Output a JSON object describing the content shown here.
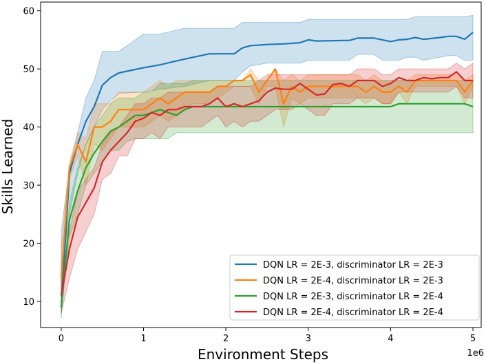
{
  "chart_data": {
    "type": "line",
    "title": "",
    "xlabel": "Environment Steps",
    "ylabel": "Skills Learned",
    "x_offset_label": "1e6",
    "xlim": [
      -0.25,
      5.1
    ],
    "ylim": [
      5.5,
      61.5
    ],
    "xticks": [
      0,
      1,
      2,
      3,
      4,
      5
    ],
    "yticks": [
      10,
      20,
      30,
      40,
      50,
      60
    ],
    "grid": false,
    "legend_position": "lower-right",
    "series": [
      {
        "name": "DQN LR = 2E-3, discriminator LR = 2E-3",
        "color": "#1f77b4",
        "x": [
          0,
          0.1,
          0.2,
          0.3,
          0.4,
          0.5,
          0.6,
          0.7,
          1.0,
          1.2,
          1.5,
          1.8,
          2.1,
          2.2,
          2.3,
          2.5,
          2.7,
          2.9,
          3.0,
          3.1,
          3.5,
          3.6,
          3.8,
          3.9,
          4.0,
          4.1,
          4.2,
          4.3,
          4.4,
          4.6,
          4.7,
          4.8,
          4.9,
          5.0
        ],
        "y": [
          9,
          32,
          37,
          41,
          43.5,
          47.2,
          48.5,
          49.3,
          50.2,
          50.7,
          51.7,
          52.6,
          52.6,
          53.6,
          54.0,
          54.2,
          54.3,
          54.5,
          55.0,
          54.8,
          54.9,
          55.3,
          55.3,
          55.0,
          54.7,
          55.0,
          55.1,
          55.4,
          55.1,
          55.4,
          55.6,
          55.6,
          55.1,
          56.3
        ],
        "upper": [
          22,
          33,
          39,
          45,
          48,
          53,
          53,
          53,
          56,
          56,
          57,
          57,
          57,
          58,
          58,
          58,
          58,
          58,
          58.5,
          58.5,
          58.5,
          58.5,
          58.5,
          58.5,
          58.5,
          58.5,
          58.5,
          59,
          59,
          59,
          59,
          59,
          59,
          59.2
        ],
        "lower": [
          7,
          25,
          32,
          37,
          40,
          43,
          44.5,
          45.8,
          46,
          46.5,
          47,
          48,
          48,
          49.5,
          50.5,
          51,
          51,
          51,
          51.5,
          51.5,
          51.5,
          52.5,
          52.5,
          51.5,
          51.5,
          51.5,
          52,
          52,
          51.5,
          52,
          52.3,
          52.3,
          51.5,
          51.5
        ]
      },
      {
        "name": "DQN LR = 2E-4, discriminator LR = 2E-3",
        "color": "#ff7f0e",
        "x": [
          0,
          0.1,
          0.2,
          0.3,
          0.4,
          0.5,
          0.6,
          0.7,
          0.8,
          1.0,
          1.1,
          1.2,
          1.3,
          1.4,
          1.5,
          1.6,
          1.8,
          1.9,
          2.0,
          2.1,
          2.2,
          2.3,
          2.4,
          2.5,
          2.6,
          2.7,
          2.8,
          2.9,
          3.0,
          3.1,
          3.3,
          3.4,
          3.5,
          3.6,
          3.7,
          3.8,
          3.9,
          4.0,
          4.1,
          4.2,
          4.3,
          4.4,
          4.5,
          4.6,
          4.7,
          4.8,
          4.9,
          5.0
        ],
        "y": [
          14,
          33,
          37,
          34,
          40,
          40,
          41,
          43,
          43,
          43,
          44,
          45,
          44,
          45,
          46,
          46,
          46,
          47,
          47,
          48,
          48,
          49,
          46,
          48,
          50,
          44,
          47,
          46,
          47,
          47,
          47,
          47,
          47,
          47,
          46,
          47,
          46,
          46,
          47,
          46,
          48,
          48,
          48,
          48,
          48,
          48,
          46,
          48
        ],
        "upper": [
          19,
          34,
          39,
          38,
          44,
          44,
          44,
          46,
          46,
          46,
          47,
          48,
          47,
          48,
          48,
          48,
          48,
          48,
          48,
          48,
          48,
          50,
          48,
          48,
          50,
          48,
          49,
          48,
          49,
          49,
          49,
          49,
          49,
          49,
          48,
          49,
          48,
          48,
          48,
          48,
          49,
          49,
          49,
          49,
          49,
          49,
          48,
          49
        ],
        "lower": [
          12,
          31,
          35,
          30,
          37,
          36,
          38,
          40,
          40,
          40,
          41,
          42,
          41,
          42,
          43,
          44,
          44,
          45,
          46,
          47,
          47,
          47,
          44,
          47,
          47,
          40,
          45,
          44,
          45,
          45,
          45,
          45,
          45,
          45,
          44,
          45,
          44,
          44,
          46,
          44,
          47,
          47,
          47,
          47,
          47,
          47,
          44,
          47
        ]
      },
      {
        "name": "DQN LR = 2E-3, discriminator LR = 2E-4",
        "color": "#2ca02c",
        "x": [
          0,
          0.1,
          0.2,
          0.3,
          0.4,
          0.5,
          0.6,
          0.7,
          0.8,
          0.9,
          1.0,
          1.1,
          1.2,
          1.3,
          1.4,
          1.5,
          1.6,
          1.7,
          1.8,
          2.0,
          2.5,
          3.0,
          3.5,
          4.0,
          4.1,
          4.5,
          4.9,
          5.0
        ],
        "y": [
          9,
          24,
          29,
          33,
          35.5,
          37.5,
          39.3,
          40,
          41,
          42,
          42,
          42.5,
          43,
          42.5,
          42,
          43,
          43.5,
          43.5,
          43.5,
          43.5,
          43.5,
          43.5,
          43.5,
          43.5,
          44,
          44,
          44,
          43.5
        ],
        "upper": [
          12,
          27,
          33,
          37,
          40,
          42,
          44,
          45,
          45,
          45,
          46,
          46,
          47.5,
          47.5,
          47.5,
          47.5,
          48,
          48,
          48,
          48,
          48,
          48,
          48,
          48,
          48,
          48,
          48,
          48
        ],
        "lower": [
          8,
          21,
          25,
          30,
          32,
          34,
          36,
          36,
          37.5,
          38,
          38,
          38,
          38,
          38,
          39,
          39,
          39,
          39,
          39,
          39,
          39,
          39,
          39,
          39,
          39,
          39,
          39,
          39
        ]
      },
      {
        "name": "DQN LR = 2E-4, discriminator LR = 2E-4",
        "color": "#d62728",
        "x": [
          0,
          0.1,
          0.2,
          0.3,
          0.4,
          0.5,
          0.6,
          0.7,
          0.8,
          0.9,
          1.0,
          1.1,
          1.2,
          1.3,
          1.4,
          1.5,
          1.6,
          1.7,
          1.8,
          1.9,
          2.0,
          2.1,
          2.2,
          2.3,
          2.4,
          2.5,
          2.6,
          2.7,
          2.8,
          2.9,
          3.0,
          3.1,
          3.2,
          3.3,
          3.4,
          3.5,
          3.6,
          3.7,
          3.8,
          3.9,
          4.0,
          4.1,
          4.2,
          4.3,
          4.4,
          4.5,
          4.6,
          4.7,
          4.8,
          4.9,
          5.0
        ],
        "y": [
          11,
          19,
          24.5,
          27,
          29.5,
          34,
          36,
          37.5,
          39,
          41,
          41.5,
          42.5,
          42,
          43,
          43,
          43.5,
          43.5,
          43.5,
          44,
          45,
          43.5,
          44,
          43.5,
          44,
          44.5,
          46,
          46.7,
          46.5,
          46.5,
          47.5,
          46.5,
          45.5,
          45.7,
          47.3,
          47.5,
          47,
          48,
          48,
          48,
          47,
          47.5,
          48.5,
          48,
          48,
          48.5,
          48.3,
          48.5,
          48.5,
          49.5,
          48,
          48
        ],
        "upper": [
          14,
          22,
          29,
          31,
          33,
          37,
          39,
          40,
          42,
          44,
          44,
          45,
          45,
          46,
          46,
          46,
          46,
          46,
          46,
          47,
          47,
          47,
          47,
          47,
          48,
          49,
          49,
          49,
          49,
          49,
          49,
          49,
          49,
          49,
          49,
          49,
          50,
          50,
          50,
          49,
          49,
          50,
          50,
          50,
          50,
          50,
          50,
          50,
          51,
          50,
          51
        ],
        "lower": [
          8,
          14,
          19,
          22,
          25,
          31,
          32,
          35,
          35,
          38,
          38,
          39,
          38,
          40,
          40,
          40,
          40,
          40,
          41,
          42,
          40,
          41,
          40,
          41,
          41,
          42,
          43,
          43,
          43,
          44,
          43,
          42,
          42,
          44,
          44,
          44,
          45,
          45,
          45,
          44,
          44,
          46,
          46,
          46,
          46,
          46,
          46,
          46,
          47,
          45,
          45
        ]
      }
    ]
  }
}
